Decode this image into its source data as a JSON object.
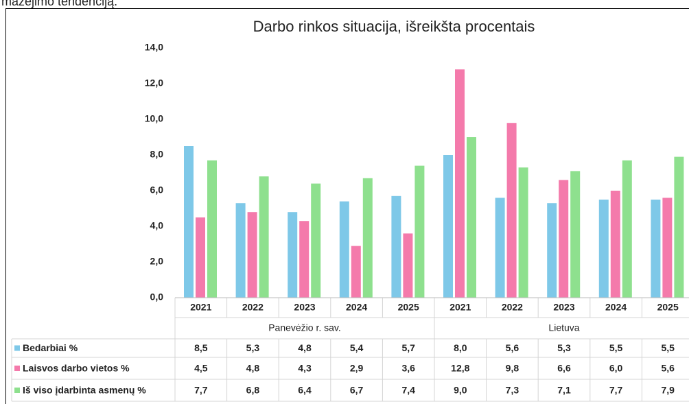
{
  "page_text": "rmažėjimo tendenciją.",
  "chart_data": {
    "type": "bar",
    "title": "Darbo rinkos situacija, išreikšta procentais",
    "groups": [
      {
        "name": "Panevėžio r. sav.",
        "categories": [
          "2021",
          "2022",
          "2023",
          "2024",
          "2025"
        ]
      },
      {
        "name": "Lietuva",
        "categories": [
          "2021",
          "2022",
          "2023",
          "2024",
          "2025"
        ]
      }
    ],
    "series": [
      {
        "name": "Bedarbiai %",
        "color": "#7ec8e8",
        "values": [
          8.5,
          5.3,
          4.8,
          5.4,
          5.7,
          8.0,
          5.6,
          5.3,
          5.5,
          5.5
        ],
        "value_labels": [
          "8,5",
          "5,3",
          "4,8",
          "5,4",
          "5,7",
          "8,0",
          "5,6",
          "5,3",
          "5,5",
          "5,5"
        ]
      },
      {
        "name": "Laisvos darbo vietos %",
        "color": "#f47aab",
        "values": [
          4.5,
          4.8,
          4.3,
          2.9,
          3.6,
          12.8,
          9.8,
          6.6,
          6.0,
          5.6
        ],
        "value_labels": [
          "4,5",
          "4,8",
          "4,3",
          "2,9",
          "3,6",
          "12,8",
          "9,8",
          "6,6",
          "6,0",
          "5,6"
        ]
      },
      {
        "name": "Iš viso įdarbinta asmenų %",
        "color": "#8ee08e",
        "values": [
          7.7,
          6.8,
          6.4,
          6.7,
          7.4,
          9.0,
          7.3,
          7.1,
          7.7,
          7.9
        ],
        "value_labels": [
          "7,7",
          "6,8",
          "6,4",
          "6,7",
          "7,4",
          "9,0",
          "7,3",
          "7,1",
          "7,7",
          "7,9"
        ]
      }
    ],
    "ylim": [
      0,
      14
    ],
    "yticks": [
      {
        "value": 0,
        "label": "0,0"
      },
      {
        "value": 2,
        "label": "2,0"
      },
      {
        "value": 4,
        "label": "4,0"
      },
      {
        "value": 6,
        "label": "6,0"
      },
      {
        "value": 8,
        "label": "8,0"
      },
      {
        "value": 10,
        "label": "10,0"
      },
      {
        "value": 12,
        "label": "12,0"
      },
      {
        "value": 14,
        "label": "14,0"
      }
    ],
    "grid": false
  }
}
